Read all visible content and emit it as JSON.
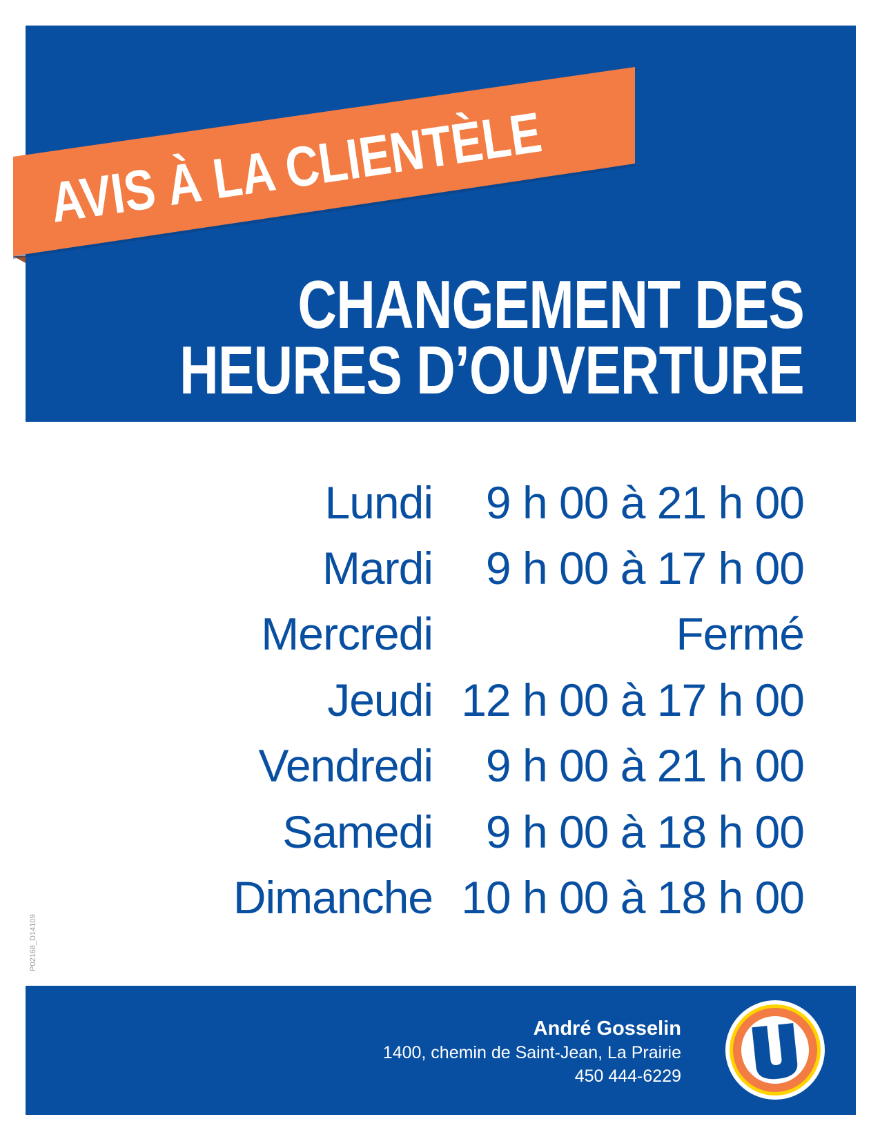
{
  "banner": {
    "text": "AVIS À LA CLIENTÈLE"
  },
  "title": {
    "line1": "CHANGEMENT DES",
    "line2": "HEURES D’OUVERTURE"
  },
  "schedule": [
    {
      "day": "Lundi",
      "hours": "9 h 00 à 21 h 00"
    },
    {
      "day": "Mardi",
      "hours": "9 h 00 à 17 h 00"
    },
    {
      "day": "Mercredi",
      "hours": "Fermé"
    },
    {
      "day": "Jeudi",
      "hours": "12 h 00 à 17 h 00"
    },
    {
      "day": "Vendredi",
      "hours": "9 h 00 à 21 h 00"
    },
    {
      "day": "Samedi",
      "hours": "9 h 00 à 18 h 00"
    },
    {
      "day": "Dimanche",
      "hours": "10 h 00 à 18 h 00"
    }
  ],
  "footer": {
    "name": "André Gosselin",
    "address": "1400, chemin de Saint-Jean, La Prairie",
    "phone": "450 444-6229"
  },
  "code": "P02168_D14109",
  "logo": {
    "letter": "U"
  },
  "colors": {
    "blue": "#094fa1",
    "orange": "#f27c43",
    "yellow": "#ffd400"
  }
}
